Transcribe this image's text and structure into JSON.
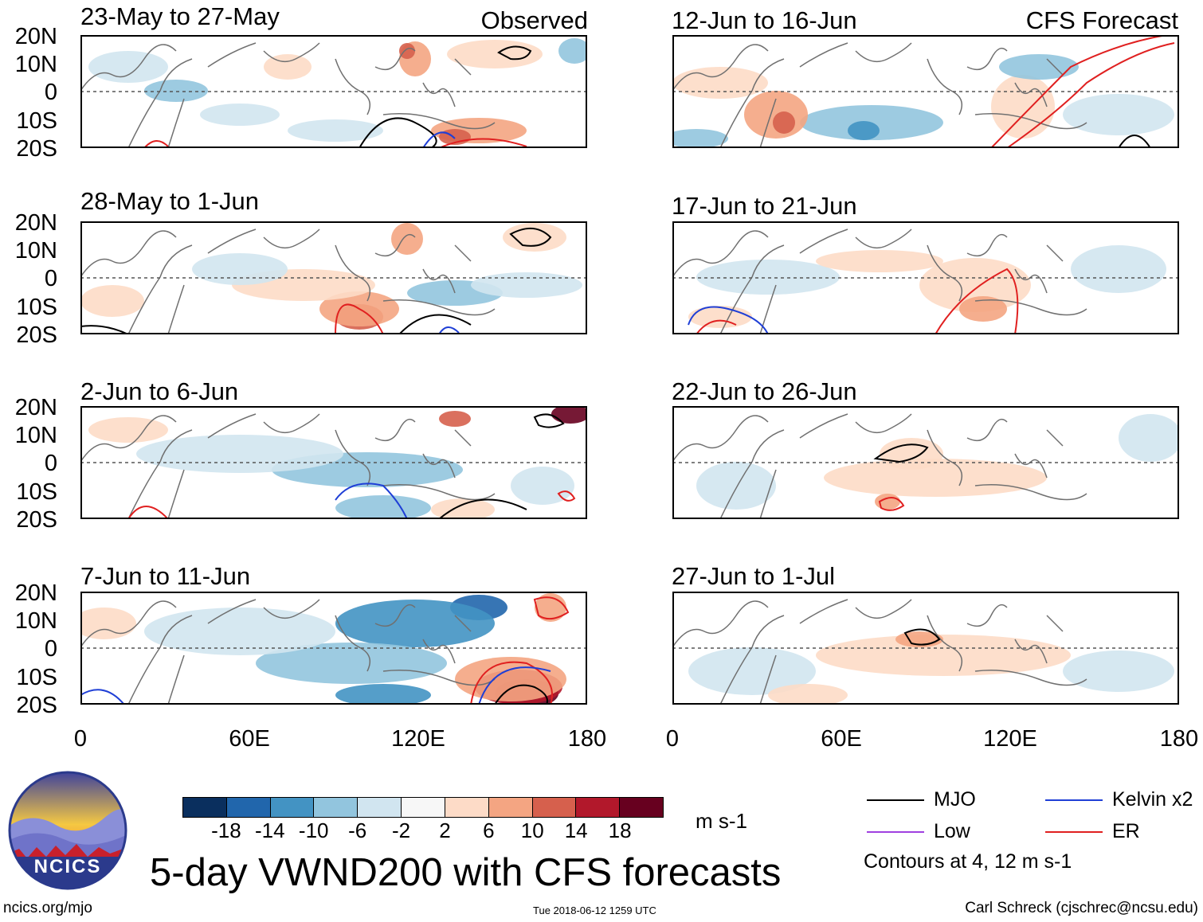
{
  "figure": {
    "title": "5-day VWND200 with CFS forecasts",
    "units": "m s-1",
    "website": "ncics.org/mjo",
    "timestamp": "Tue 2018-06-12 1259 UTC",
    "credit": "Carl Schreck (cjschrec@ncsu.edu)",
    "logo_text": "NCICS"
  },
  "columns": {
    "left_label": "Observed",
    "right_label": "CFS Forecast"
  },
  "axes": {
    "lat_labels": [
      "20N",
      "10N",
      "0",
      "10S",
      "20S"
    ],
    "lon_labels": [
      "0",
      "60E",
      "120E",
      "180"
    ]
  },
  "panels": {
    "observed": [
      {
        "period": "23-May to 27-May"
      },
      {
        "period": "28-May to 1-Jun"
      },
      {
        "period": "2-Jun to 6-Jun"
      },
      {
        "period": "7-Jun to 11-Jun"
      }
    ],
    "forecast": [
      {
        "period": "12-Jun to 16-Jun"
      },
      {
        "period": "17-Jun to 21-Jun"
      },
      {
        "period": "22-Jun to 26-Jun"
      },
      {
        "period": "27-Jun to 1-Jul"
      }
    ]
  },
  "colorbar": {
    "ticks": [
      "-18",
      "-14",
      "-10",
      "-6",
      "-2",
      "2",
      "6",
      "10",
      "14",
      "18"
    ],
    "colors": [
      "#0a2f5e",
      "#2166ac",
      "#4393c3",
      "#92c5de",
      "#d1e5f0",
      "#f7f7f7",
      "#fddbc7",
      "#f4a582",
      "#d6604d",
      "#b2182b",
      "#67001f"
    ]
  },
  "legend": {
    "items": [
      {
        "label": "MJO",
        "color": "#000000"
      },
      {
        "label": "Kelvin x2",
        "color": "#1f3fd6"
      },
      {
        "label": "Low",
        "color": "#a040e0"
      },
      {
        "label": "ER",
        "color": "#e02020"
      }
    ],
    "contour_note": "Contours at 4, 12 m s-1"
  }
}
